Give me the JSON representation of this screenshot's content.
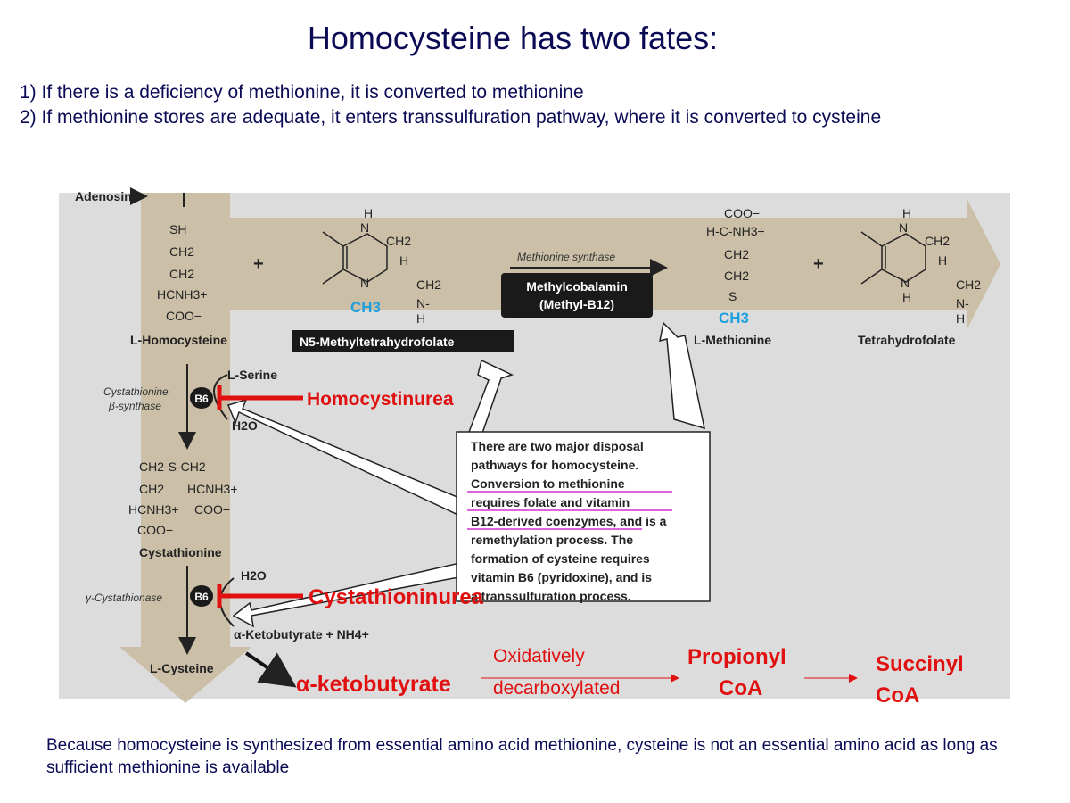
{
  "slide": {
    "title": "Homocysteine has two fates:",
    "intro_line1": "1) If there is a deficiency of methionine, it is converted to methionine",
    "intro_line2": "2) If methionine stores are adequate, it enters transsulfuration pathway, where it is converted to cysteine",
    "footer": "Because homocysteine is synthesized from essential amino acid methionine, cysteine is not an essential amino acid as long as sufficient methionine is available"
  },
  "diagram": {
    "adenosine": "Adenosine",
    "homocysteine": {
      "sh": "SH",
      "ch2a": "CH2",
      "ch2b": "CH2",
      "hcnh3": "HCNH3+",
      "coo": "COO−",
      "label": "L-Homocysteine"
    },
    "plus1": "+",
    "plus2": "+",
    "n5_label": "N5-Methyltetrahydrofolate",
    "methionine_synthase": "Methionine synthase",
    "methylcobalamin_line1": "Methylcobalamin",
    "methylcobalamin_line2": "(Methyl-B12)",
    "ch3": "CH3",
    "methionine": {
      "coo": "COO−",
      "hcnh3": "H-C-NH3+",
      "ch2a": "CH2",
      "ch2b": "CH2",
      "s": "S",
      "label": "L-Methionine"
    },
    "thf_label": "Tetrahydrofolate",
    "serine": "L-Serine",
    "cbs_line1": "Cystathionine",
    "cbs_line2": "β-synthase",
    "b6": "B6",
    "h2o": "H2O",
    "cystathionine": {
      "row1": "CH2-S-CH2",
      "row2a": "CH2",
      "row2b": "HCNH3+",
      "row3a": "HCNH3+",
      "row3b": "COO−",
      "row4": "COO−",
      "label": "Cystathionine"
    },
    "cgl": "γ-Cystathionase",
    "ketobutyrate_nh4": "α-Ketobutyrate + NH4+",
    "cysteine": "L-Cysteine",
    "homocystinurea": "Homocystinurea",
    "cystathioninurea": "Cystathioninurea",
    "ketobutyrate": "α-ketobutyrate",
    "oxidatively": "Oxidatively",
    "decarboxylated": "decarboxylated",
    "propionyl": "Propionyl",
    "coa1": "CoA",
    "succinyl": "Succinyl",
    "coa2": "CoA",
    "note_lines": [
      "There are two major disposal",
      "pathways for homocysteine.",
      "Conversion to methionine",
      "requires folate and vitamin",
      "B12-derived coenzymes, and is a",
      "remethylation process. The",
      "formation of cysteine requires",
      "vitamin B6 (pyridoxine), and is",
      "a transsulfuration process."
    ]
  },
  "colors": {
    "title_text": "#0a0a55",
    "panel": "#dcdcdc",
    "path_arrow": "#c9bba1",
    "inhibit_red": "#e01010",
    "methyl_blue": "#1fa0dc",
    "highlight_pink": "#d030d0"
  }
}
